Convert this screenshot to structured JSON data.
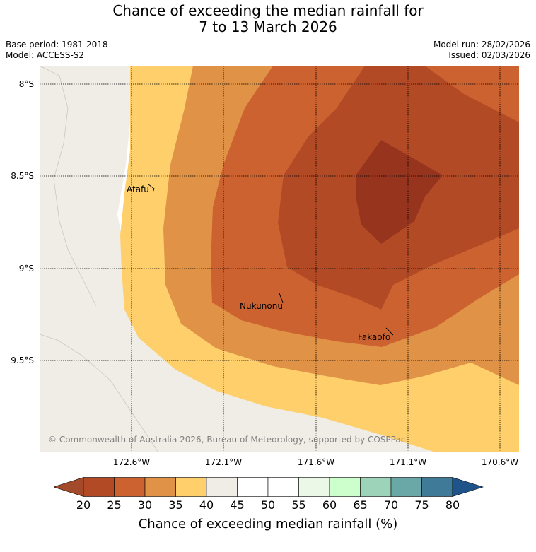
{
  "title": {
    "line1": "Chance of exceeding the median rainfall for",
    "line2": "7 to 13 March 2026"
  },
  "meta": {
    "base_period": "Base period: 1981-2018",
    "model": "Model: ACCESS-S2",
    "model_run": "Model run: 28/02/2026",
    "issued": "Issued: 02/03/2026"
  },
  "map": {
    "lat_labels": [
      "8°S",
      "8.5°S",
      "9°S",
      "9.5°S"
    ],
    "lon_labels": [
      "172.6°W",
      "172.1°W",
      "171.6°W",
      "171.1°W",
      "170.6°W"
    ],
    "places": {
      "atafu": "Atafu",
      "nukunonu": "Nukunonu",
      "fakaofo": "Fakaofo"
    },
    "copyright": "© Commonwealth of Australia 2026, Bureau of Meteorology, supported by COSPPac"
  },
  "colorbar": {
    "ticks": [
      "20",
      "25",
      "30",
      "35",
      "40",
      "45",
      "50",
      "55",
      "60",
      "65",
      "70",
      "75",
      "80"
    ],
    "label": "Chance of exceeding median rainfall (%)",
    "colors": {
      "under": "#a24a2a",
      "c20_25": "#b34a26",
      "c25_30": "#cc6230",
      "c30_35": "#e09246",
      "c35_40": "#fecf6a",
      "c40_45": "#f0ece6",
      "c45_50": "#ffffff",
      "c50_55": "#ffffff",
      "c55_60": "#ebf7e7",
      "c60_65": "#ccffcc",
      "c65_70": "#9dd3b9",
      "c70_75": "#6aa8a8",
      "c75_80": "#3f7a99",
      "over": "#1f548b"
    },
    "peak_color": "#97341e"
  }
}
